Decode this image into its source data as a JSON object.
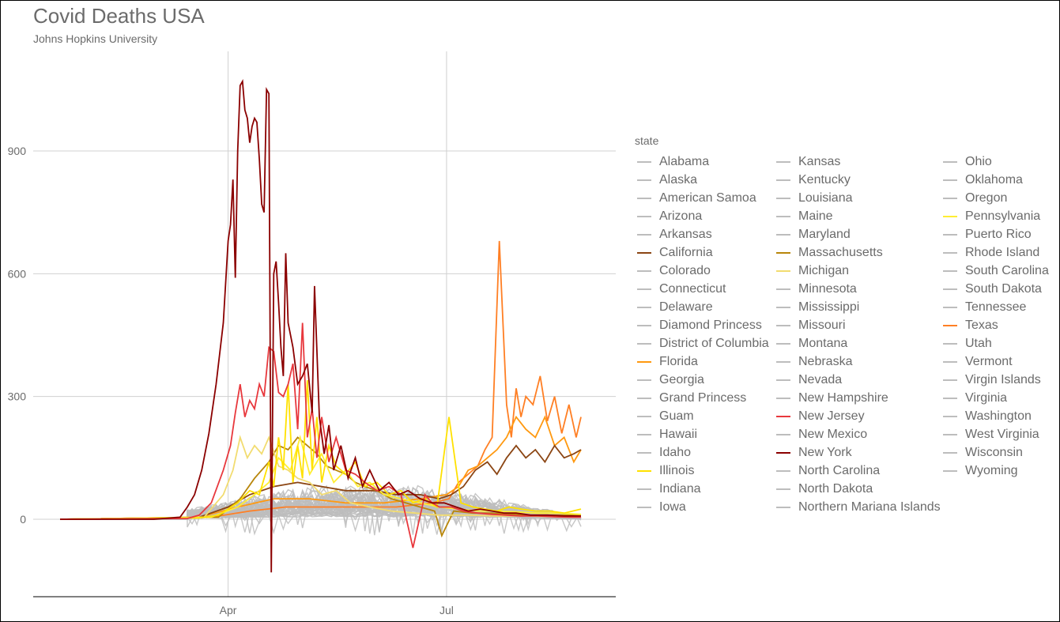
{
  "title": "Covid Deaths USA",
  "subtitle": "Johns Hopkins University",
  "chart_data": {
    "type": "line",
    "title": "Covid Deaths USA",
    "subtitle": "Johns Hopkins University",
    "xlabel": "",
    "ylabel": "",
    "x_ticks": [
      "Apr",
      "Jul"
    ],
    "y_ticks": [
      0,
      300,
      600,
      900
    ],
    "xlim": [
      "2020-01-22",
      "2020-08-26"
    ],
    "ylim": [
      -190,
      1100
    ],
    "grid": true,
    "legend_title": "state",
    "legend_position": "right",
    "highlight_series": [
      {
        "name": "New York",
        "color": "#8b0000",
        "x": [
          "2020-01-22",
          "2020-03-01",
          "2020-03-12",
          "2020-03-15",
          "2020-03-18",
          "2020-03-21",
          "2020-03-24",
          "2020-03-27",
          "2020-03-30",
          "2020-04-01",
          "2020-04-02",
          "2020-04-03",
          "2020-04-04",
          "2020-04-05",
          "2020-04-06",
          "2020-04-07",
          "2020-04-08",
          "2020-04-09",
          "2020-04-10",
          "2020-04-11",
          "2020-04-12",
          "2020-04-13",
          "2020-04-14",
          "2020-04-15",
          "2020-04-16",
          "2020-04-17",
          "2020-04-18",
          "2020-04-19",
          "2020-04-20",
          "2020-04-21",
          "2020-04-22",
          "2020-04-23",
          "2020-04-24",
          "2020-04-25",
          "2020-04-26",
          "2020-04-28",
          "2020-04-30",
          "2020-05-02",
          "2020-05-04",
          "2020-05-06",
          "2020-05-07",
          "2020-05-09",
          "2020-05-11",
          "2020-05-13",
          "2020-05-15",
          "2020-05-18",
          "2020-05-21",
          "2020-05-24",
          "2020-05-27",
          "2020-05-30",
          "2020-06-03",
          "2020-06-07",
          "2020-06-11",
          "2020-06-15",
          "2020-06-20",
          "2020-06-25",
          "2020-06-30",
          "2020-07-05",
          "2020-07-10",
          "2020-07-15",
          "2020-07-20",
          "2020-07-25",
          "2020-07-30",
          "2020-08-05",
          "2020-08-12",
          "2020-08-19",
          "2020-08-26"
        ],
        "y": [
          0,
          0,
          5,
          30,
          60,
          120,
          210,
          330,
          480,
          680,
          720,
          830,
          590,
          900,
          1060,
          1070,
          1000,
          980,
          920,
          960,
          980,
          970,
          880,
          770,
          750,
          1050,
          1040,
          -130,
          600,
          630,
          530,
          420,
          350,
          650,
          480,
          420,
          330,
          350,
          380,
          260,
          570,
          250,
          160,
          230,
          120,
          180,
          100,
          150,
          80,
          120,
          70,
          90,
          60,
          70,
          50,
          40,
          40,
          30,
          20,
          25,
          20,
          15,
          15,
          10,
          10,
          8,
          8
        ]
      },
      {
        "name": "New Jersey",
        "color": "#e8383d",
        "x": [
          "2020-01-22",
          "2020-03-15",
          "2020-03-20",
          "2020-03-25",
          "2020-03-30",
          "2020-04-02",
          "2020-04-04",
          "2020-04-06",
          "2020-04-08",
          "2020-04-10",
          "2020-04-12",
          "2020-04-14",
          "2020-04-16",
          "2020-04-18",
          "2020-04-20",
          "2020-04-22",
          "2020-04-24",
          "2020-04-26",
          "2020-04-28",
          "2020-04-30",
          "2020-05-02",
          "2020-05-04",
          "2020-05-06",
          "2020-05-08",
          "2020-05-10",
          "2020-05-13",
          "2020-05-16",
          "2020-05-20",
          "2020-05-24",
          "2020-05-28",
          "2020-06-02",
          "2020-06-07",
          "2020-06-12",
          "2020-06-17",
          "2020-06-22",
          "2020-06-25",
          "2020-06-28",
          "2020-07-03",
          "2020-07-08",
          "2020-07-14",
          "2020-07-20",
          "2020-07-26",
          "2020-08-01",
          "2020-08-08",
          "2020-08-15",
          "2020-08-22",
          "2020-08-26"
        ],
        "y": [
          0,
          2,
          10,
          40,
          120,
          180,
          260,
          330,
          250,
          290,
          270,
          330,
          300,
          420,
          410,
          310,
          300,
          330,
          380,
          220,
          480,
          200,
          270,
          150,
          250,
          140,
          200,
          120,
          110,
          90,
          70,
          80,
          60,
          -70,
          60,
          40,
          30,
          30,
          20,
          15,
          12,
          10,
          8,
          8,
          6,
          5,
          5
        ]
      },
      {
        "name": "Illinois",
        "color": "#ffe100",
        "x": [
          "2020-01-22",
          "2020-03-20",
          "2020-03-28",
          "2020-04-05",
          "2020-04-10",
          "2020-04-14",
          "2020-04-18",
          "2020-04-20",
          "2020-04-22",
          "2020-04-24",
          "2020-04-26",
          "2020-04-28",
          "2020-04-30",
          "2020-05-02",
          "2020-05-04",
          "2020-05-06",
          "2020-05-08",
          "2020-05-10",
          "2020-05-13",
          "2020-05-16",
          "2020-05-20",
          "2020-05-24",
          "2020-05-28",
          "2020-06-02",
          "2020-06-07",
          "2020-06-12",
          "2020-06-17",
          "2020-06-22",
          "2020-06-27",
          "2020-07-02",
          "2020-07-07",
          "2020-07-12",
          "2020-07-17",
          "2020-07-22",
          "2020-07-27",
          "2020-08-01",
          "2020-08-07",
          "2020-08-13",
          "2020-08-19",
          "2020-08-26"
        ],
        "y": [
          0,
          3,
          10,
          40,
          70,
          60,
          140,
          80,
          200,
          120,
          330,
          90,
          180,
          100,
          340,
          120,
          250,
          90,
          180,
          130,
          110,
          140,
          80,
          90,
          60,
          70,
          40,
          50,
          30,
          250,
          40,
          30,
          25,
          20,
          30,
          25,
          20,
          20,
          15,
          25
        ]
      },
      {
        "name": "Pennsylvania",
        "color": "#ffee33",
        "x": [
          "2020-01-22",
          "2020-03-25",
          "2020-04-05",
          "2020-04-12",
          "2020-04-18",
          "2020-04-22",
          "2020-04-27",
          "2020-05-01",
          "2020-05-05",
          "2020-05-10",
          "2020-05-15",
          "2020-05-20",
          "2020-05-25",
          "2020-05-30",
          "2020-06-05",
          "2020-06-12",
          "2020-06-20",
          "2020-06-28",
          "2020-07-06",
          "2020-07-14",
          "2020-07-22",
          "2020-07-30",
          "2020-08-08",
          "2020-08-17",
          "2020-08-26"
        ],
        "y": [
          0,
          5,
          30,
          60,
          90,
          150,
          120,
          200,
          110,
          160,
          90,
          120,
          80,
          90,
          60,
          50,
          40,
          30,
          25,
          20,
          20,
          18,
          15,
          15,
          12
        ]
      },
      {
        "name": "Michigan",
        "color": "#f2dc70",
        "x": [
          "2020-01-22",
          "2020-03-22",
          "2020-03-30",
          "2020-04-03",
          "2020-04-06",
          "2020-04-09",
          "2020-04-12",
          "2020-04-15",
          "2020-04-18",
          "2020-04-22",
          "2020-04-26",
          "2020-04-30",
          "2020-05-05",
          "2020-05-10",
          "2020-05-16",
          "2020-05-22",
          "2020-05-30",
          "2020-06-08",
          "2020-06-18",
          "2020-06-28",
          "2020-07-10",
          "2020-07-22",
          "2020-08-03",
          "2020-08-15",
          "2020-08-26"
        ],
        "y": [
          0,
          5,
          60,
          120,
          200,
          150,
          180,
          160,
          200,
          130,
          120,
          100,
          90,
          60,
          70,
          40,
          30,
          20,
          15,
          10,
          10,
          8,
          8,
          6,
          6
        ]
      },
      {
        "name": "Massachusetts",
        "color": "#b8860b",
        "x": [
          "2020-01-22",
          "2020-03-28",
          "2020-04-06",
          "2020-04-12",
          "2020-04-18",
          "2020-04-22",
          "2020-04-26",
          "2020-04-30",
          "2020-05-04",
          "2020-05-08",
          "2020-05-12",
          "2020-05-16",
          "2020-05-20",
          "2020-05-24",
          "2020-05-28",
          "2020-06-02",
          "2020-06-08",
          "2020-06-14",
          "2020-06-20",
          "2020-06-26",
          "2020-06-29",
          "2020-07-04",
          "2020-07-12",
          "2020-07-20",
          "2020-07-28",
          "2020-08-05",
          "2020-08-14",
          "2020-08-26"
        ],
        "y": [
          0,
          5,
          50,
          100,
          140,
          180,
          170,
          200,
          180,
          160,
          130,
          120,
          110,
          90,
          80,
          70,
          50,
          40,
          30,
          20,
          -40,
          20,
          15,
          15,
          12,
          10,
          10,
          10
        ]
      },
      {
        "name": "California",
        "color": "#8b4513",
        "x": [
          "2020-01-22",
          "2020-03-20",
          "2020-04-01",
          "2020-04-10",
          "2020-04-20",
          "2020-04-30",
          "2020-05-10",
          "2020-05-20",
          "2020-06-01",
          "2020-06-10",
          "2020-06-20",
          "2020-06-28",
          "2020-07-03",
          "2020-07-08",
          "2020-07-13",
          "2020-07-18",
          "2020-07-22",
          "2020-07-26",
          "2020-07-30",
          "2020-08-03",
          "2020-08-07",
          "2020-08-11",
          "2020-08-15",
          "2020-08-19",
          "2020-08-23",
          "2020-08-26"
        ],
        "y": [
          0,
          5,
          30,
          60,
          80,
          90,
          80,
          70,
          70,
          60,
          60,
          50,
          60,
          80,
          120,
          140,
          110,
          150,
          180,
          150,
          170,
          140,
          180,
          150,
          160,
          170
        ]
      },
      {
        "name": "Florida",
        "color": "#ff9910",
        "x": [
          "2020-01-22",
          "2020-03-20",
          "2020-04-05",
          "2020-04-20",
          "2020-05-05",
          "2020-05-20",
          "2020-06-05",
          "2020-06-20",
          "2020-07-01",
          "2020-07-06",
          "2020-07-10",
          "2020-07-14",
          "2020-07-18",
          "2020-07-22",
          "2020-07-26",
          "2020-07-30",
          "2020-08-03",
          "2020-08-07",
          "2020-08-11",
          "2020-08-15",
          "2020-08-19",
          "2020-08-23",
          "2020-08-26"
        ],
        "y": [
          0,
          5,
          30,
          50,
          50,
          40,
          40,
          50,
          60,
          80,
          120,
          130,
          150,
          170,
          200,
          250,
          220,
          200,
          250,
          180,
          200,
          140,
          170
        ]
      },
      {
        "name": "Texas",
        "color": "#ff7f24",
        "x": [
          "2020-01-22",
          "2020-03-25",
          "2020-04-10",
          "2020-04-25",
          "2020-05-10",
          "2020-05-25",
          "2020-06-10",
          "2020-06-25",
          "2020-07-02",
          "2020-07-06",
          "2020-07-10",
          "2020-07-14",
          "2020-07-17",
          "2020-07-20",
          "2020-07-23",
          "2020-07-26",
          "2020-07-28",
          "2020-07-30",
          "2020-08-01",
          "2020-08-03",
          "2020-08-06",
          "2020-08-09",
          "2020-08-12",
          "2020-08-15",
          "2020-08-18",
          "2020-08-21",
          "2020-08-24",
          "2020-08-26"
        ],
        "y": [
          0,
          5,
          20,
          30,
          30,
          30,
          30,
          40,
          50,
          90,
          110,
          130,
          170,
          200,
          680,
          280,
          200,
          320,
          250,
          300,
          280,
          350,
          240,
          300,
          210,
          280,
          200,
          250
        ]
      }
    ],
    "background_series_color": "#bdbdbd",
    "background_series_count": 46
  },
  "legend": {
    "title": "state",
    "columns": [
      [
        {
          "name": "Alabama",
          "color": "#bdbdbd"
        },
        {
          "name": "Alaska",
          "color": "#bdbdbd"
        },
        {
          "name": "American Samoa",
          "color": "#bdbdbd"
        },
        {
          "name": "Arizona",
          "color": "#bdbdbd"
        },
        {
          "name": "Arkansas",
          "color": "#bdbdbd"
        },
        {
          "name": "California",
          "color": "#8b4513"
        },
        {
          "name": "Colorado",
          "color": "#bdbdbd"
        },
        {
          "name": "Connecticut",
          "color": "#bdbdbd"
        },
        {
          "name": "Delaware",
          "color": "#bdbdbd"
        },
        {
          "name": "Diamond Princess",
          "color": "#bdbdbd"
        },
        {
          "name": "District of Columbia",
          "color": "#bdbdbd"
        },
        {
          "name": "Florida",
          "color": "#ff9910"
        },
        {
          "name": "Georgia",
          "color": "#bdbdbd"
        },
        {
          "name": "Grand Princess",
          "color": "#bdbdbd"
        },
        {
          "name": "Guam",
          "color": "#bdbdbd"
        },
        {
          "name": "Hawaii",
          "color": "#bdbdbd"
        },
        {
          "name": "Idaho",
          "color": "#bdbdbd"
        },
        {
          "name": "Illinois",
          "color": "#ffe100"
        },
        {
          "name": "Indiana",
          "color": "#bdbdbd"
        },
        {
          "name": "Iowa",
          "color": "#bdbdbd"
        }
      ],
      [
        {
          "name": "Kansas",
          "color": "#bdbdbd"
        },
        {
          "name": "Kentucky",
          "color": "#bdbdbd"
        },
        {
          "name": "Louisiana",
          "color": "#bdbdbd"
        },
        {
          "name": "Maine",
          "color": "#bdbdbd"
        },
        {
          "name": "Maryland",
          "color": "#bdbdbd"
        },
        {
          "name": "Massachusetts",
          "color": "#b8860b"
        },
        {
          "name": "Michigan",
          "color": "#f2dc70"
        },
        {
          "name": "Minnesota",
          "color": "#bdbdbd"
        },
        {
          "name": "Mississippi",
          "color": "#bdbdbd"
        },
        {
          "name": "Missouri",
          "color": "#bdbdbd"
        },
        {
          "name": "Montana",
          "color": "#bdbdbd"
        },
        {
          "name": "Nebraska",
          "color": "#bdbdbd"
        },
        {
          "name": "Nevada",
          "color": "#bdbdbd"
        },
        {
          "name": "New Hampshire",
          "color": "#bdbdbd"
        },
        {
          "name": "New Jersey",
          "color": "#e8383d"
        },
        {
          "name": "New Mexico",
          "color": "#bdbdbd"
        },
        {
          "name": "New York",
          "color": "#8b0000"
        },
        {
          "name": "North Carolina",
          "color": "#bdbdbd"
        },
        {
          "name": "North Dakota",
          "color": "#bdbdbd"
        },
        {
          "name": "Northern Mariana Islands",
          "color": "#bdbdbd"
        }
      ],
      [
        {
          "name": "Ohio",
          "color": "#bdbdbd"
        },
        {
          "name": "Oklahoma",
          "color": "#bdbdbd"
        },
        {
          "name": "Oregon",
          "color": "#bdbdbd"
        },
        {
          "name": "Pennsylvania",
          "color": "#ffee33"
        },
        {
          "name": "Puerto Rico",
          "color": "#bdbdbd"
        },
        {
          "name": "Rhode Island",
          "color": "#bdbdbd"
        },
        {
          "name": "South Carolina",
          "color": "#bdbdbd"
        },
        {
          "name": "South Dakota",
          "color": "#bdbdbd"
        },
        {
          "name": "Tennessee",
          "color": "#bdbdbd"
        },
        {
          "name": "Texas",
          "color": "#ff7f24"
        },
        {
          "name": "Utah",
          "color": "#bdbdbd"
        },
        {
          "name": "Vermont",
          "color": "#bdbdbd"
        },
        {
          "name": "Virgin Islands",
          "color": "#bdbdbd"
        },
        {
          "name": "Virginia",
          "color": "#bdbdbd"
        },
        {
          "name": "Washington",
          "color": "#bdbdbd"
        },
        {
          "name": "West Virginia",
          "color": "#bdbdbd"
        },
        {
          "name": "Wisconsin",
          "color": "#bdbdbd"
        },
        {
          "name": "Wyoming",
          "color": "#bdbdbd"
        }
      ]
    ]
  }
}
